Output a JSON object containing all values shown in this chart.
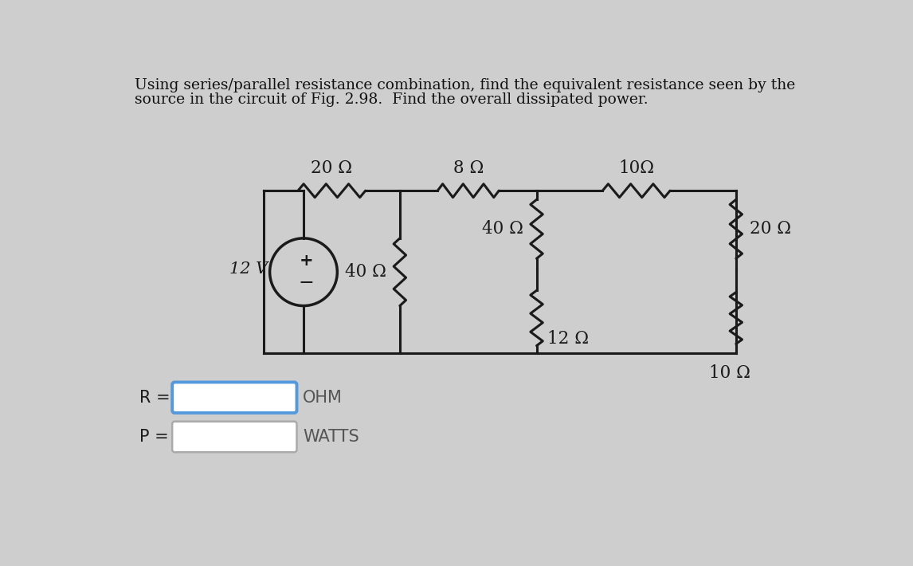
{
  "title_line1": "Using series/parallel resistance combination, find the equivalent resistance seen by the",
  "title_line2": "source in the circuit of Fig. 2.98.  Find the overall dissipated power.",
  "bg_color": "#cecece",
  "resistors": {
    "R1_top": "20 Ω",
    "R2_top": "8 Ω",
    "R3_top": "10Ω",
    "R4_left": "40 Ω",
    "R5_mid": "40 Ω",
    "R6_bot": "12 Ω",
    "R7_right_bot": "10 Ω",
    "R8_right": "20 Ω"
  },
  "source_voltage": "12 V",
  "label_R": "R =",
  "label_P": "P =",
  "label_OHM": "OHM",
  "label_WATTS": "WATTS",
  "box1_color": "#5599dd",
  "box2_color": "#999999",
  "line_color": "#1a1a1a",
  "text_color": "#1a1a1a",
  "title_color": "#111111",
  "circuit_inner_color": "#e0e0e0"
}
